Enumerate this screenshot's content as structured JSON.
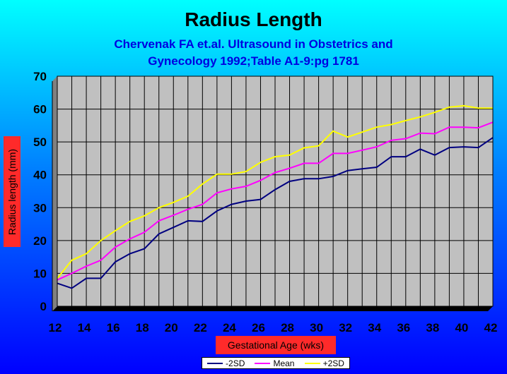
{
  "chart_data": {
    "type": "line",
    "title": "Radius Length",
    "subtitle_line1": "Chervenak FA et.al. Ultrasound in Obstetrics and",
    "subtitle_line2": "Gynecology 1992;Table A1-9:pg 1781",
    "xlabel": "Gestational Age (wks)",
    "ylabel": "Radius length (mm)",
    "xlim": [
      12,
      42
    ],
    "ylim": [
      0,
      70
    ],
    "x_ticks": [
      12,
      14,
      16,
      18,
      20,
      22,
      24,
      26,
      28,
      30,
      32,
      34,
      36,
      38,
      40,
      42
    ],
    "y_ticks": [
      0,
      10,
      20,
      30,
      40,
      50,
      60,
      70
    ],
    "grid": true,
    "legend_position": "bottom",
    "x": [
      12,
      13,
      14,
      15,
      16,
      17,
      18,
      19,
      20,
      21,
      22,
      23,
      24,
      25,
      26,
      27,
      28,
      29,
      30,
      31,
      32,
      33,
      34,
      35,
      36,
      37,
      38,
      39,
      40,
      41,
      42
    ],
    "series": [
      {
        "name": "-2SD",
        "color": "#000080",
        "values": [
          7,
          5.5,
          8.5,
          8.5,
          13.5,
          16,
          17.5,
          22,
          24,
          26,
          25.8,
          29,
          31,
          32,
          32.5,
          35.5,
          38,
          38.8,
          38.8,
          39.5,
          41.3,
          41.8,
          42.3,
          45.5,
          45.5,
          47.8,
          46,
          48.3,
          48.5,
          48.3,
          51.3
        ]
      },
      {
        "name": "Mean",
        "color": "#ff00ff",
        "values": [
          8,
          10,
          12.2,
          14,
          18,
          20.5,
          22.5,
          26,
          27.7,
          29.5,
          31,
          34.5,
          35.7,
          36.5,
          38.3,
          40.7,
          42,
          43.5,
          43.5,
          46.5,
          46.5,
          47.5,
          48.5,
          50.5,
          51,
          52.7,
          52.5,
          54.5,
          54.5,
          54.3,
          56
        ]
      },
      {
        "name": "+2SD",
        "color": "#ffff00",
        "values": [
          8.5,
          14,
          16,
          20,
          23,
          25.8,
          27.5,
          30,
          31.6,
          33.5,
          37.2,
          40.2,
          40.2,
          41,
          43.8,
          45.5,
          46,
          48.2,
          48.8,
          53.3,
          51.5,
          53,
          54.5,
          55.3,
          56.5,
          57.6,
          59,
          60.6,
          61,
          60.3,
          60.3
        ]
      }
    ]
  }
}
